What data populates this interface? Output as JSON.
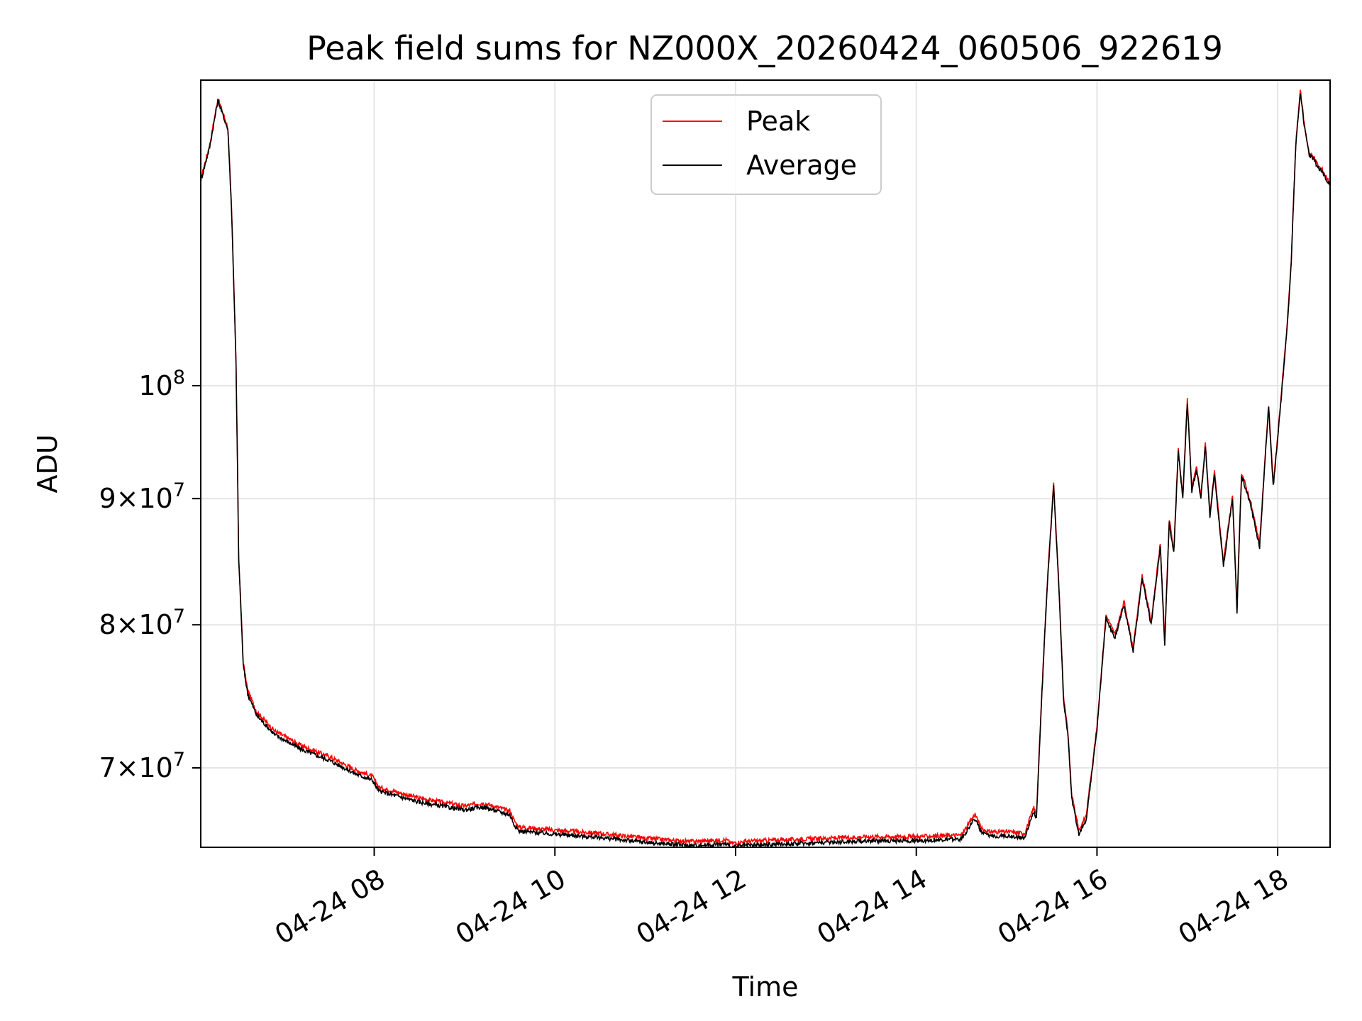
{
  "chart_data": {
    "type": "line",
    "title": "Peak field sums for NZ000X_20260424_060506_922619",
    "xlabel": "Time",
    "ylabel": "ADU",
    "x_unit": "hours since 2026-04-24 00:00",
    "xlim": [
      6.08,
      18.58
    ],
    "ylim": [
      65000000,
      133000000
    ],
    "yscale": "log",
    "grid": true,
    "legend_position": "top-center",
    "x_ticks": [
      {
        "value": 8,
        "label": "04-24 08"
      },
      {
        "value": 10,
        "label": "04-24 10"
      },
      {
        "value": 12,
        "label": "04-24 12"
      },
      {
        "value": 14,
        "label": "04-24 14"
      },
      {
        "value": 16,
        "label": "04-24 16"
      },
      {
        "value": 18,
        "label": "04-24 18"
      }
    ],
    "y_ticks": [
      {
        "value": 70000000,
        "mantissa": "7",
        "exponent": "7"
      },
      {
        "value": 80000000,
        "mantissa": "8",
        "exponent": "7"
      },
      {
        "value": 90000000,
        "mantissa": "9",
        "exponent": "7"
      },
      {
        "value": 100000000,
        "mantissa": "",
        "exponent": "8"
      }
    ],
    "times_symbol": "×",
    "base": "10",
    "series": [
      {
        "name": "Peak",
        "color": "#ff0000",
        "offset": 250000
      },
      {
        "name": "Average",
        "color": "#000000",
        "offset": 0
      }
    ],
    "x": [
      6.08,
      6.18,
      6.27,
      6.38,
      6.42,
      6.47,
      6.5,
      6.55,
      6.6,
      6.7,
      6.9,
      7.2,
      7.5,
      7.8,
      7.98,
      8.05,
      8.5,
      9.0,
      9.2,
      9.5,
      9.55,
      9.6,
      10.0,
      10.5,
      11.0,
      11.5,
      11.9,
      11.95,
      12.1,
      12.5,
      13.0,
      13.5,
      14.0,
      14.5,
      14.65,
      14.72,
      14.8,
      15.0,
      15.2,
      15.3,
      15.33,
      15.38,
      15.45,
      15.52,
      15.58,
      15.63,
      15.68,
      15.72,
      15.8,
      15.88,
      15.95,
      16.0,
      16.05,
      16.1,
      16.2,
      16.3,
      16.4,
      16.5,
      16.6,
      16.7,
      16.75,
      16.8,
      16.85,
      16.9,
      16.95,
      17.0,
      17.05,
      17.1,
      17.15,
      17.2,
      17.25,
      17.3,
      17.4,
      17.5,
      17.55,
      17.6,
      17.7,
      17.8,
      17.9,
      17.95,
      18.0,
      18.05,
      18.1,
      18.15,
      18.2,
      18.25,
      18.3,
      18.35,
      18.4,
      18.45,
      18.5,
      18.58
    ],
    "values": [
      121000000,
      125000000,
      130500000,
      127000000,
      118000000,
      102000000,
      85000000,
      77000000,
      75000000,
      73500000,
      72200000,
      71200000,
      70500000,
      69600000,
      69200000,
      68500000,
      67800000,
      67300000,
      67500000,
      67000000,
      66400000,
      66000000,
      65800000,
      65600000,
      65300000,
      65100000,
      65200000,
      65000000,
      65100000,
      65200000,
      65300000,
      65400000,
      65400000,
      65500000,
      66800000,
      65900000,
      65700000,
      65700000,
      65600000,
      67200000,
      66800000,
      73500000,
      83000000,
      91000000,
      82500000,
      74500000,
      72000000,
      68000000,
      65800000,
      66700000,
      70000000,
      72500000,
      76500000,
      80500000,
      79000000,
      81500000,
      78000000,
      83500000,
      80000000,
      86000000,
      78500000,
      88000000,
      85500000,
      94000000,
      90000000,
      98500000,
      90500000,
      92500000,
      90000000,
      94500000,
      88500000,
      92000000,
      84500000,
      90000000,
      81000000,
      92000000,
      89500000,
      86000000,
      98000000,
      91000000,
      95000000,
      100000000,
      105000000,
      112000000,
      125000000,
      131500000,
      127000000,
      124000000,
      123500000,
      122500000,
      122000000,
      120500000
    ]
  }
}
